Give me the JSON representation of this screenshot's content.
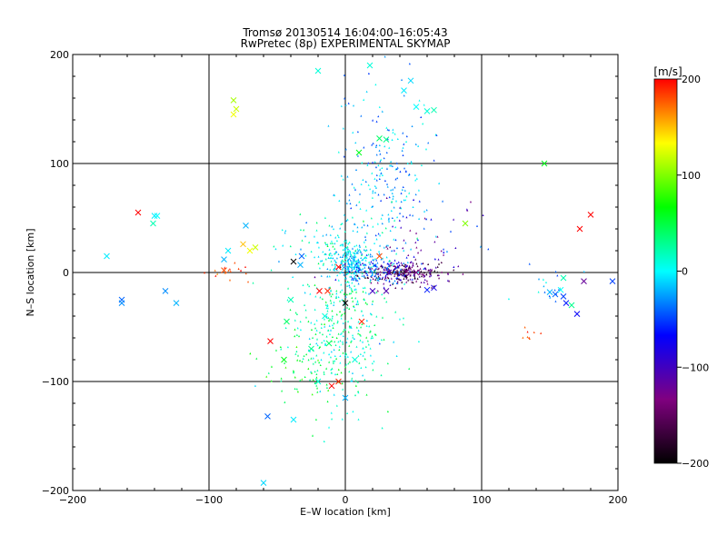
{
  "chart_data": {
    "type": "scatter",
    "title": "Tromsø 20130514 16:04:00–16:05:43",
    "subtitle": "RwPretec (8p) EXPERIMENTAL SKYMAP",
    "xlabel": "E–W location [km]",
    "ylabel": "N–S location [km]",
    "xlim": [
      -200,
      200
    ],
    "ylim": [
      -200,
      200
    ],
    "x_ticks": [
      -200,
      -100,
      0,
      100,
      200
    ],
    "y_ticks": [
      -200,
      -100,
      0,
      100,
      200
    ],
    "x_tick_labels": [
      "−200",
      "−100",
      "0",
      "100",
      "200"
    ],
    "y_tick_labels": [
      "−200",
      "−100",
      "0",
      "100",
      "200"
    ],
    "grid": true,
    "colorbar": {
      "label": "[m/s]",
      "range": [
        -200,
        200
      ],
      "ticks": [
        200,
        100,
        0,
        -100,
        -200
      ],
      "tick_labels": [
        "200",
        "100",
        "0",
        "−100",
        "−200"
      ],
      "colors": [
        "#000000",
        "#800080",
        "#0000ff",
        "#00ffff",
        "#00ff00",
        "#ffff00",
        "#ff0000"
      ]
    },
    "points": [
      {
        "x": -152,
        "y": 55,
        "v": 200,
        "m": "x"
      },
      {
        "x": -175,
        "y": 15,
        "v": -5,
        "m": "x"
      },
      {
        "x": -164,
        "y": -25,
        "v": -40,
        "m": "x"
      },
      {
        "x": -164,
        "y": -28,
        "v": -30,
        "m": "x"
      },
      {
        "x": -140,
        "y": 52,
        "v": -5,
        "m": "x"
      },
      {
        "x": -138,
        "y": 52,
        "v": 0,
        "m": "x"
      },
      {
        "x": -141,
        "y": 45,
        "v": 20,
        "m": "x"
      },
      {
        "x": -132,
        "y": -17,
        "v": -30,
        "m": "x"
      },
      {
        "x": -124,
        "y": -28,
        "v": -20,
        "m": "x"
      },
      {
        "x": -82,
        "y": 158,
        "v": 110,
        "m": "x"
      },
      {
        "x": -80,
        "y": 150,
        "v": 120,
        "m": "x"
      },
      {
        "x": -82,
        "y": 145,
        "v": 130,
        "m": "x"
      },
      {
        "x": -89,
        "y": 2,
        "v": 180,
        "m": "x"
      },
      {
        "x": -86,
        "y": 20,
        "v": -5,
        "m": "x"
      },
      {
        "x": -89,
        "y": 12,
        "v": -20,
        "m": "x"
      },
      {
        "x": -75,
        "y": 26,
        "v": 150,
        "m": "x"
      },
      {
        "x": -70,
        "y": 20,
        "v": 130,
        "m": "x"
      },
      {
        "x": -66,
        "y": 23,
        "v": 120,
        "m": "x"
      },
      {
        "x": -73,
        "y": 43,
        "v": -20,
        "m": "x"
      },
      {
        "x": -55,
        "y": -63,
        "v": 200,
        "m": "x"
      },
      {
        "x": -38,
        "y": 10,
        "v": -210,
        "m": "x"
      },
      {
        "x": -32,
        "y": 15,
        "v": -40,
        "m": "x"
      },
      {
        "x": -33,
        "y": 7,
        "v": -20,
        "m": "x"
      },
      {
        "x": -19,
        "y": -17,
        "v": 200,
        "m": "x"
      },
      {
        "x": -13,
        "y": -17,
        "v": 190,
        "m": "x"
      },
      {
        "x": -5,
        "y": 5,
        "v": 200,
        "m": "x"
      },
      {
        "x": 0,
        "y": -28,
        "v": -210,
        "m": "x"
      },
      {
        "x": 25,
        "y": 15,
        "v": 180,
        "m": "x"
      },
      {
        "x": 32,
        "y": 0,
        "v": -110,
        "m": "x"
      },
      {
        "x": 20,
        "y": -17,
        "v": -100,
        "m": "x"
      },
      {
        "x": 30,
        "y": -17,
        "v": -110,
        "m": "x"
      },
      {
        "x": 45,
        "y": 1,
        "v": -140,
        "m": "x"
      },
      {
        "x": 52,
        "y": 0,
        "v": -130,
        "m": "x"
      },
      {
        "x": 60,
        "y": -16,
        "v": -60,
        "m": "x"
      },
      {
        "x": 65,
        "y": -14,
        "v": -80,
        "m": "x"
      },
      {
        "x": 48,
        "y": 176,
        "v": -10,
        "m": "x"
      },
      {
        "x": 43,
        "y": 167,
        "v": -5,
        "m": "x"
      },
      {
        "x": 52,
        "y": 152,
        "v": 0,
        "m": "x"
      },
      {
        "x": 60,
        "y": 148,
        "v": 10,
        "m": "x"
      },
      {
        "x": 65,
        "y": 149,
        "v": 20,
        "m": "x"
      },
      {
        "x": 18,
        "y": 190,
        "v": 10,
        "m": "x"
      },
      {
        "x": -20,
        "y": 185,
        "v": 10,
        "m": "x"
      },
      {
        "x": 25,
        "y": 123,
        "v": 40,
        "m": "x"
      },
      {
        "x": 30,
        "y": 122,
        "v": 30,
        "m": "x"
      },
      {
        "x": 10,
        "y": 110,
        "v": 60,
        "m": "x"
      },
      {
        "x": 88,
        "y": 45,
        "v": 100,
        "m": "x"
      },
      {
        "x": 146,
        "y": 100,
        "v": 60,
        "m": "x"
      },
      {
        "x": 172,
        "y": 40,
        "v": 200,
        "m": "x"
      },
      {
        "x": 180,
        "y": 53,
        "v": 200,
        "m": "x"
      },
      {
        "x": 175,
        "y": -8,
        "v": -120,
        "m": "x"
      },
      {
        "x": 196,
        "y": -8,
        "v": -50,
        "m": "x"
      },
      {
        "x": 160,
        "y": -5,
        "v": 20,
        "m": "x"
      },
      {
        "x": 158,
        "y": -16,
        "v": 0,
        "m": "x"
      },
      {
        "x": 150,
        "y": -18,
        "v": -20,
        "m": "x"
      },
      {
        "x": 154,
        "y": -20,
        "v": -40,
        "m": "x"
      },
      {
        "x": 160,
        "y": -22,
        "v": -50,
        "m": "x"
      },
      {
        "x": 162,
        "y": -28,
        "v": -60,
        "m": "x"
      },
      {
        "x": 166,
        "y": -30,
        "v": 30,
        "m": "x"
      },
      {
        "x": 170,
        "y": -38,
        "v": -70,
        "m": "x"
      },
      {
        "x": -57,
        "y": -132,
        "v": -40,
        "m": "x"
      },
      {
        "x": -60,
        "y": -193,
        "v": -10,
        "m": "x"
      },
      {
        "x": -38,
        "y": -135,
        "v": -5,
        "m": "x"
      },
      {
        "x": -10,
        "y": -104,
        "v": 200,
        "m": "x"
      },
      {
        "x": -5,
        "y": -100,
        "v": 190,
        "m": "x"
      },
      {
        "x": -20,
        "y": -100,
        "v": 10,
        "m": "x"
      },
      {
        "x": 12,
        "y": -45,
        "v": 190,
        "m": "x"
      },
      {
        "x": -12,
        "y": -65,
        "v": 40,
        "m": "x"
      },
      {
        "x": -25,
        "y": -70,
        "v": 30,
        "m": "x"
      },
      {
        "x": -45,
        "y": -80,
        "v": 60,
        "m": "x"
      },
      {
        "x": -43,
        "y": -45,
        "v": 40,
        "m": "x"
      },
      {
        "x": -40,
        "y": -25,
        "v": 20,
        "m": "x"
      },
      {
        "x": -15,
        "y": -40,
        "v": 10,
        "m": "x"
      },
      {
        "x": 7,
        "y": -80,
        "v": 10,
        "m": "x"
      },
      {
        "x": 0,
        "y": -115,
        "v": -20,
        "m": "x"
      }
    ],
    "clusters": [
      {
        "cx": -5,
        "cy": -50,
        "sx": 18,
        "sy": 35,
        "n": 360,
        "vmin": -15,
        "vmax": 60
      },
      {
        "cx": 42,
        "cy": 0,
        "sx": 16,
        "sy": 5,
        "n": 240,
        "vmin": -200,
        "vmax": -95
      },
      {
        "cx": 28,
        "cy": 80,
        "sx": 18,
        "sy": 45,
        "n": 240,
        "vmin": -55,
        "vmax": 10
      },
      {
        "cx": 5,
        "cy": 10,
        "sx": 9,
        "sy": 10,
        "n": 220,
        "vmin": -35,
        "vmax": 20
      },
      {
        "cx": 22,
        "cy": 2,
        "sx": 12,
        "sy": 6,
        "n": 110,
        "vmin": -90,
        "vmax": -15
      },
      {
        "cx": -88,
        "cy": 0,
        "sx": 10,
        "sy": 4,
        "n": 16,
        "vmin": 160,
        "vmax": 200
      },
      {
        "cx": 135,
        "cy": -60,
        "sx": 4,
        "sy": 4,
        "n": 8,
        "vmin": 170,
        "vmax": 200
      },
      {
        "cx": 150,
        "cy": -15,
        "sx": 10,
        "sy": 8,
        "n": 18,
        "vmin": -60,
        "vmax": 20
      },
      {
        "cx": -10,
        "cy": 30,
        "sx": 20,
        "sy": 20,
        "n": 80,
        "vmin": -30,
        "vmax": 40
      },
      {
        "cx": 60,
        "cy": 30,
        "sx": 20,
        "sy": 20,
        "n": 60,
        "vmin": -140,
        "vmax": -20
      },
      {
        "cx": -30,
        "cy": -90,
        "sx": 15,
        "sy": 15,
        "n": 60,
        "vmin": 20,
        "vmax": 90
      }
    ]
  }
}
